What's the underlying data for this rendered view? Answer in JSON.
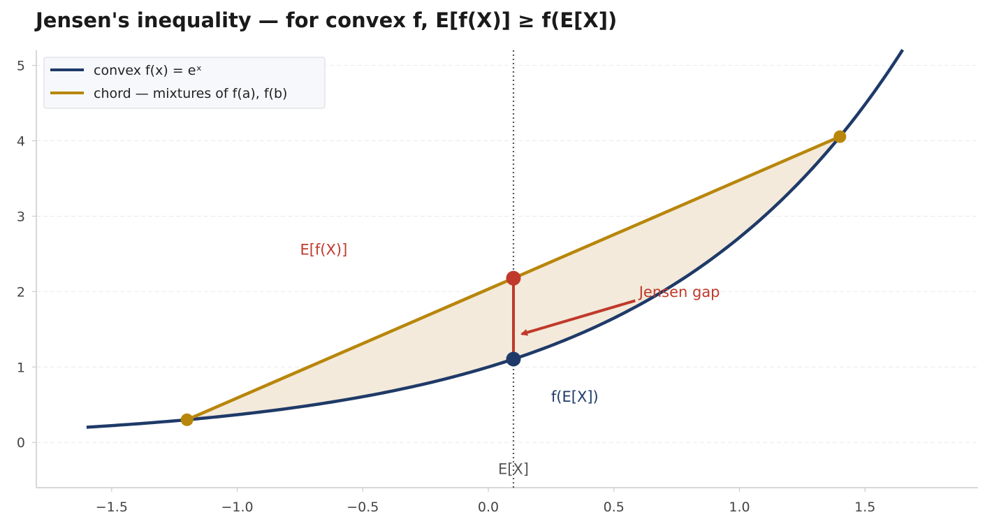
{
  "chart_data": {
    "type": "line",
    "title": "Jensen's inequality — for convex f, E[f(X)] ≥ f(E[X])",
    "xlabel": "",
    "ylabel": "",
    "xlim": [
      -1.8,
      1.95
    ],
    "ylim": [
      -0.6,
      5.2
    ],
    "xticks": [
      -1.5,
      -1.0,
      -0.5,
      0.0,
      0.5,
      1.0,
      1.5
    ],
    "xtick_labels": [
      "−1.5",
      "−1.0",
      "−0.5",
      "0.0",
      "0.5",
      "1.0",
      "1.5"
    ],
    "yticks": [
      0,
      1,
      2,
      3,
      4,
      5
    ],
    "ytick_labels": [
      "0",
      "1",
      "2",
      "3",
      "4",
      "5"
    ],
    "grid": "horizontal dashed",
    "legend_position": "top-left",
    "colors": {
      "curve": "#1f3a68",
      "chord": "#b8860b",
      "fill": "#f3eadb",
      "gap": "#c0392b",
      "mean_line": "#555555",
      "axis": "#cccccc",
      "tick_text": "#444444"
    },
    "series": [
      {
        "name": "convex f(x) = eˣ",
        "function": "exp",
        "x_range": [
          -1.6,
          1.65
        ]
      },
      {
        "name": "chord — mixtures of f(a), f(b)",
        "x": [
          -1.2,
          1.4
        ],
        "y": [
          0.301,
          4.055
        ]
      }
    ],
    "points": {
      "a": {
        "x": -1.2,
        "y": 0.301
      },
      "b": {
        "x": 1.4,
        "y": 4.055
      },
      "mean_x": 0.1,
      "f_of_mean": 1.105,
      "mean_of_f": 2.178
    },
    "annotations": {
      "mean_of_f_label": "E[f(X)]",
      "f_of_mean_label": "f(E[X])",
      "gap_label": "Jensen gap",
      "mean_label": "E[X]"
    }
  }
}
